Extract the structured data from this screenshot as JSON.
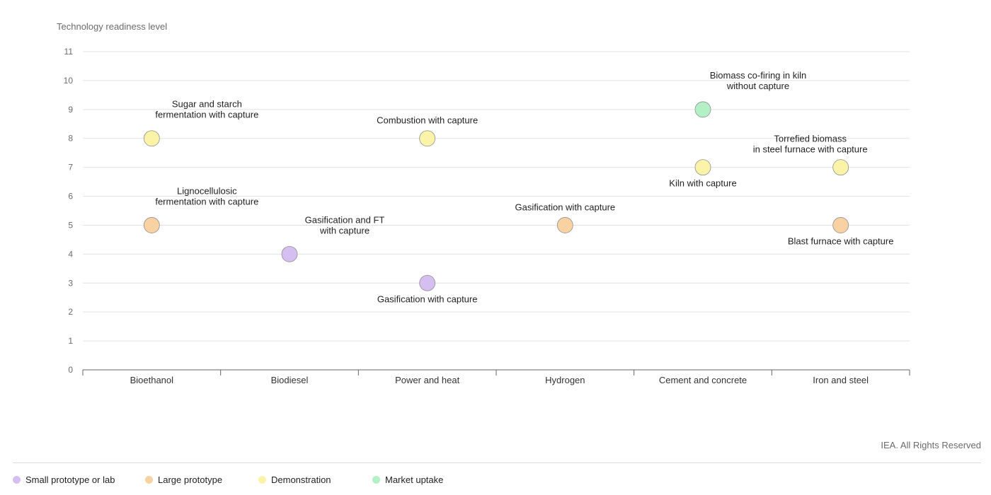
{
  "chart_data": {
    "type": "scatter",
    "ylabel": "Technology readiness level",
    "ylim": [
      0,
      11
    ],
    "yticks": [
      0,
      1,
      2,
      3,
      4,
      5,
      6,
      7,
      8,
      9,
      10,
      11
    ],
    "categories": [
      "Bioethanol",
      "Biodiesel",
      "Power and heat",
      "Hydrogen",
      "Cement and concrete",
      "Iron and steel"
    ],
    "series": [
      {
        "name": "Small prototype or lab",
        "color": "#d4bff0"
      },
      {
        "name": "Large prototype",
        "color": "#f8d2a3"
      },
      {
        "name": "Demonstration",
        "color": "#fbf4a8"
      },
      {
        "name": "Market uptake",
        "color": "#b3f0c6"
      }
    ],
    "points": [
      {
        "category": "Bioethanol",
        "value": 8,
        "stage": "Demonstration",
        "label": [
          "Sugar and starch",
          "fermentation with capture"
        ],
        "label_pos": "above-right"
      },
      {
        "category": "Bioethanol",
        "value": 5,
        "stage": "Large prototype",
        "label": [
          "Lignocellulosic",
          "fermentation with capture"
        ],
        "label_pos": "above-right"
      },
      {
        "category": "Biodiesel",
        "value": 4,
        "stage": "Small prototype or lab",
        "label": [
          "Gasification and FT",
          "with capture"
        ],
        "label_pos": "above-right"
      },
      {
        "category": "Power and heat",
        "value": 8,
        "stage": "Demonstration",
        "label": [
          "Combustion with capture"
        ],
        "label_pos": "above"
      },
      {
        "category": "Power and heat",
        "value": 3,
        "stage": "Small prototype or lab",
        "label": [
          "Gasification with capture"
        ],
        "label_pos": "below"
      },
      {
        "category": "Hydrogen",
        "value": 5,
        "stage": "Large prototype",
        "label": [
          "Gasification with capture"
        ],
        "label_pos": "above"
      },
      {
        "category": "Cement and concrete",
        "value": 9,
        "stage": "Market uptake",
        "label": [
          "Biomass co-firing in kiln",
          "without capture"
        ],
        "label_pos": "above-right"
      },
      {
        "category": "Cement and concrete",
        "value": 7,
        "stage": "Demonstration",
        "label": [
          "Kiln with capture"
        ],
        "label_pos": "below"
      },
      {
        "category": "Iron and steel",
        "value": 7,
        "stage": "Demonstration",
        "label": [
          "Torrefied biomass",
          "in steel furnace with capture"
        ],
        "label_pos": "above-left"
      },
      {
        "category": "Iron and steel",
        "value": 5,
        "stage": "Large prototype",
        "label": [
          "Blast furnace with capture"
        ],
        "label_pos": "below"
      }
    ]
  },
  "footer": {
    "credit": "IEA. All Rights Reserved"
  }
}
